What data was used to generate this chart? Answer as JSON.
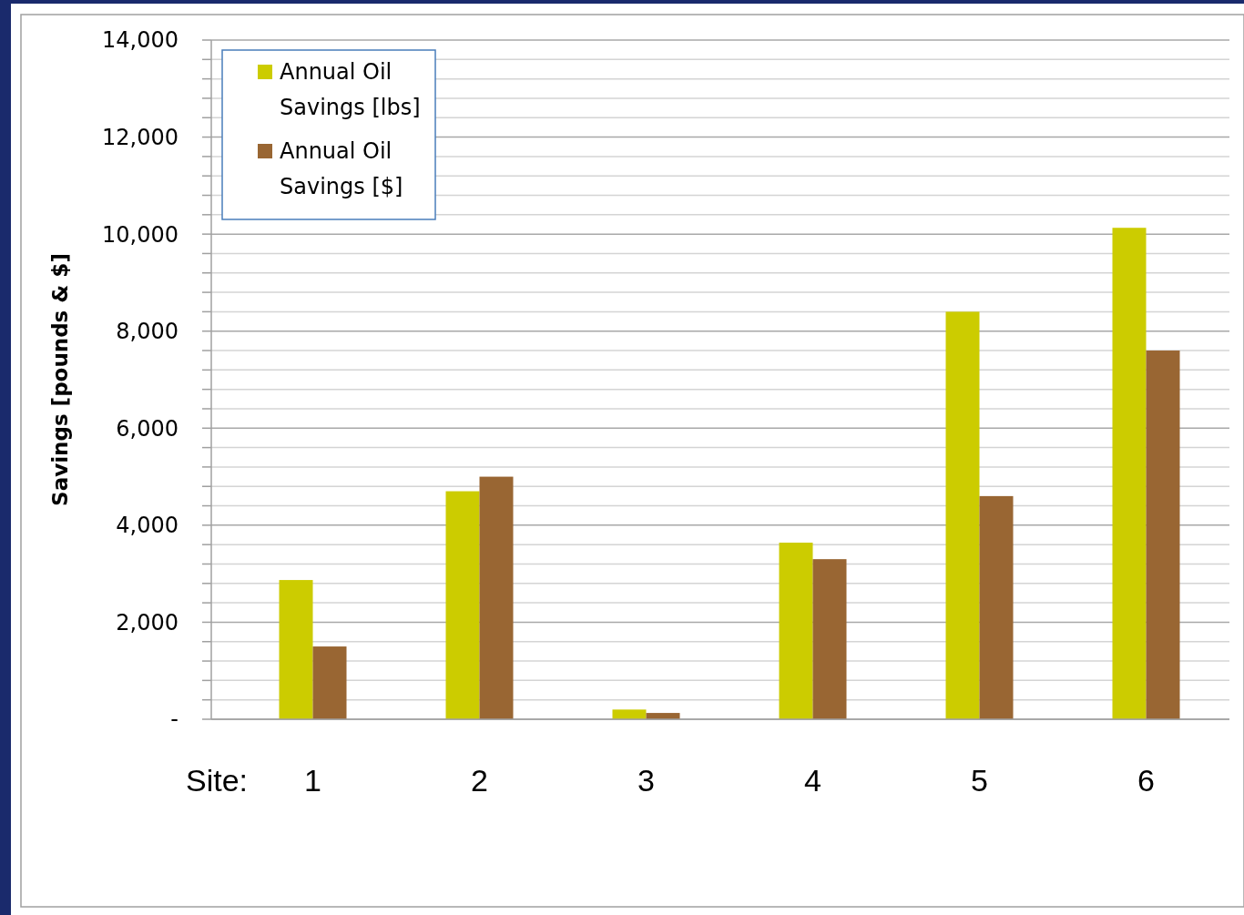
{
  "chart_data": {
    "type": "bar",
    "xlabel": "Site:",
    "ylabel": "Savings [pounds & $]",
    "categories": [
      "1",
      "2",
      "3",
      "4",
      "5",
      "6"
    ],
    "series": [
      {
        "name": "Annual Oil Savings [lbs]",
        "color": "#cccc00",
        "values": [
          2870,
          4700,
          200,
          3640,
          8400,
          10130
        ]
      },
      {
        "name": "Annual Oil Savings [$]",
        "color": "#996633",
        "values": [
          1500,
          5000,
          130,
          3300,
          4600,
          7600
        ]
      }
    ],
    "ylim": [
      0,
      14000
    ],
    "yticks": [
      {
        "value": 0,
        "label": "-"
      },
      {
        "value": 400,
        "label": null
      },
      {
        "value": 800,
        "label": null
      },
      {
        "value": 1200,
        "label": null
      },
      {
        "value": 1600,
        "label": null
      },
      {
        "value": 2000,
        "label": "2,000"
      },
      {
        "value": 2400,
        "label": null
      },
      {
        "value": 2800,
        "label": null
      },
      {
        "value": 3200,
        "label": null
      },
      {
        "value": 3600,
        "label": null
      },
      {
        "value": 4000,
        "label": "4,000"
      },
      {
        "value": 4400,
        "label": null
      },
      {
        "value": 4800,
        "label": null
      },
      {
        "value": 5200,
        "label": null
      },
      {
        "value": 5600,
        "label": null
      },
      {
        "value": 6000,
        "label": "6,000"
      },
      {
        "value": 6400,
        "label": null
      },
      {
        "value": 6800,
        "label": null
      },
      {
        "value": 7200,
        "label": null
      },
      {
        "value": 7600,
        "label": null
      },
      {
        "value": 8000,
        "label": "8,000"
      },
      {
        "value": 8400,
        "label": null
      },
      {
        "value": 8800,
        "label": null
      },
      {
        "value": 9200,
        "label": null
      },
      {
        "value": 9600,
        "label": null
      },
      {
        "value": 10000,
        "label": "10,000"
      },
      {
        "value": 10400,
        "label": null
      },
      {
        "value": 10800,
        "label": null
      },
      {
        "value": 11200,
        "label": null
      },
      {
        "value": 11600,
        "label": null
      },
      {
        "value": 12000,
        "label": "12,000"
      },
      {
        "value": 12400,
        "label": null
      },
      {
        "value": 12800,
        "label": null
      },
      {
        "value": 13200,
        "label": null
      },
      {
        "value": 13600,
        "label": null
      },
      {
        "value": 14000,
        "label": "14,000"
      }
    ],
    "grid": true,
    "legend": "top left"
  }
}
